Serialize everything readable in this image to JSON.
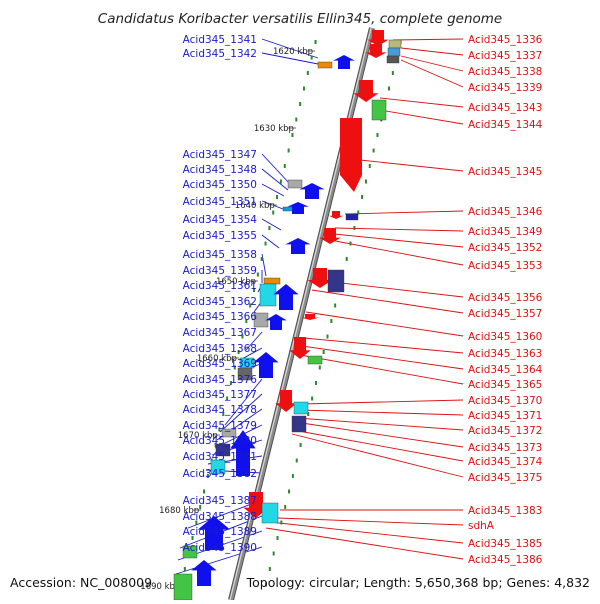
{
  "title": "Candidatus Koribacter versatilis Ellin345, complete genome",
  "footer": {
    "accession": "Accession: NC_008009",
    "summary": "Topology: circular; Length: 5,650,368 bp; Genes: 4,832"
  },
  "colors": {
    "left_label": "#1a1acc",
    "right_label": "#dd1111",
    "backbone": "#8c8c8c",
    "tick": "#2a8a2a",
    "forward_gene": "#1010ee",
    "reverse_gene": "#ee1010",
    "cyan": "#22d8e6",
    "green": "#44c444",
    "gray": "#a8a8a8",
    "navy": "#343488",
    "orange": "#ee8800"
  },
  "ticks": [
    "1620 kbp",
    "1630 kbp",
    "1640 kbp",
    "1650 kbp",
    "1660 kbp",
    "1670 kbp",
    "1680 kbp",
    "1690 kbp"
  ],
  "left_genes": [
    "Acid345_1341",
    "Acid345_1342",
    "Acid345_1347",
    "Acid345_1348",
    "Acid345_1350",
    "Acid345_1351",
    "Acid345_1354",
    "Acid345_1355",
    "Acid345_1358",
    "Acid345_1359",
    "Acid345_1361",
    "Acid345_1362",
    "Acid345_1366",
    "Acid345_1367",
    "Acid345_1368",
    "Acid345_1369",
    "Acid345_1376",
    "Acid345_1377",
    "Acid345_1378",
    "Acid345_1379",
    "Acid345_1380",
    "Acid345_1381",
    "Acid345_1382",
    "Acid345_1387",
    "Acid345_1388",
    "Acid345_1389",
    "Acid345_1390"
  ],
  "right_genes": [
    "Acid345_1336",
    "Acid345_1337",
    "Acid345_1338",
    "Acid345_1339",
    "Acid345_1343",
    "Acid345_1344",
    "Acid345_1345",
    "Acid345_1346",
    "Acid345_1349",
    "Acid345_1352",
    "Acid345_1353",
    "Acid345_1356",
    "Acid345_1357",
    "Acid345_1360",
    "Acid345_1363",
    "Acid345_1364",
    "Acid345_1365",
    "Acid345_1370",
    "Acid345_1371",
    "Acid345_1372",
    "Acid345_1373",
    "Acid345_1374",
    "Acid345_1375",
    "Acid345_1383",
    "sdhA",
    "Acid345_1385",
    "Acid345_1386"
  ]
}
